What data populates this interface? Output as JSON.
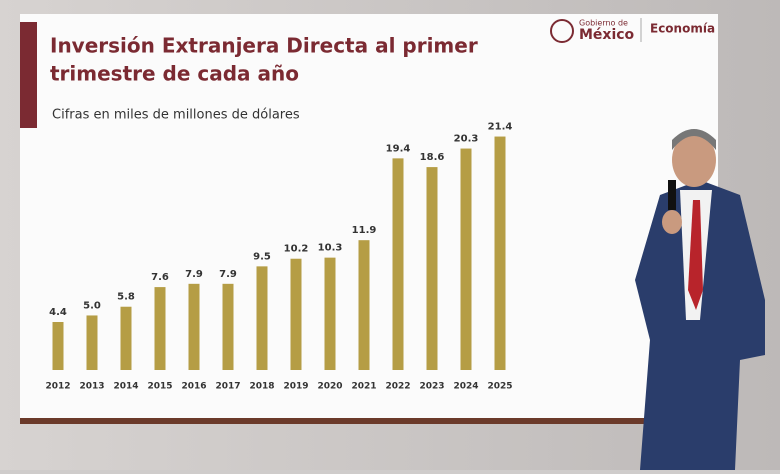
{
  "header": {
    "government": [
      "Gobierno de",
      "México"
    ],
    "ministry": "Economía"
  },
  "chart_data": {
    "type": "bar",
    "title": [
      "Inversión Extranjera Directa al primer",
      "trimestre de cada año"
    ],
    "subtitle": "Cifras en miles de millones de dólares",
    "categories": [
      "2012",
      "2013",
      "2014",
      "2015",
      "2016",
      "2017",
      "2018",
      "2019",
      "2020",
      "2021",
      "2022",
      "2023",
      "2024",
      "2025"
    ],
    "values": [
      4.4,
      5.0,
      5.8,
      7.6,
      7.9,
      7.9,
      9.5,
      10.2,
      10.3,
      11.9,
      19.4,
      18.6,
      20.3,
      21.4
    ],
    "value_labels": [
      "4.4",
      "5.0",
      "5.8",
      "7.6",
      "7.9",
      "7.9",
      "9.5",
      "10.2",
      "10.3",
      "11.9",
      "19.4",
      "18.6",
      "20.3",
      "21.4"
    ],
    "color": "#b59d45",
    "ylim": [
      0,
      22
    ]
  }
}
